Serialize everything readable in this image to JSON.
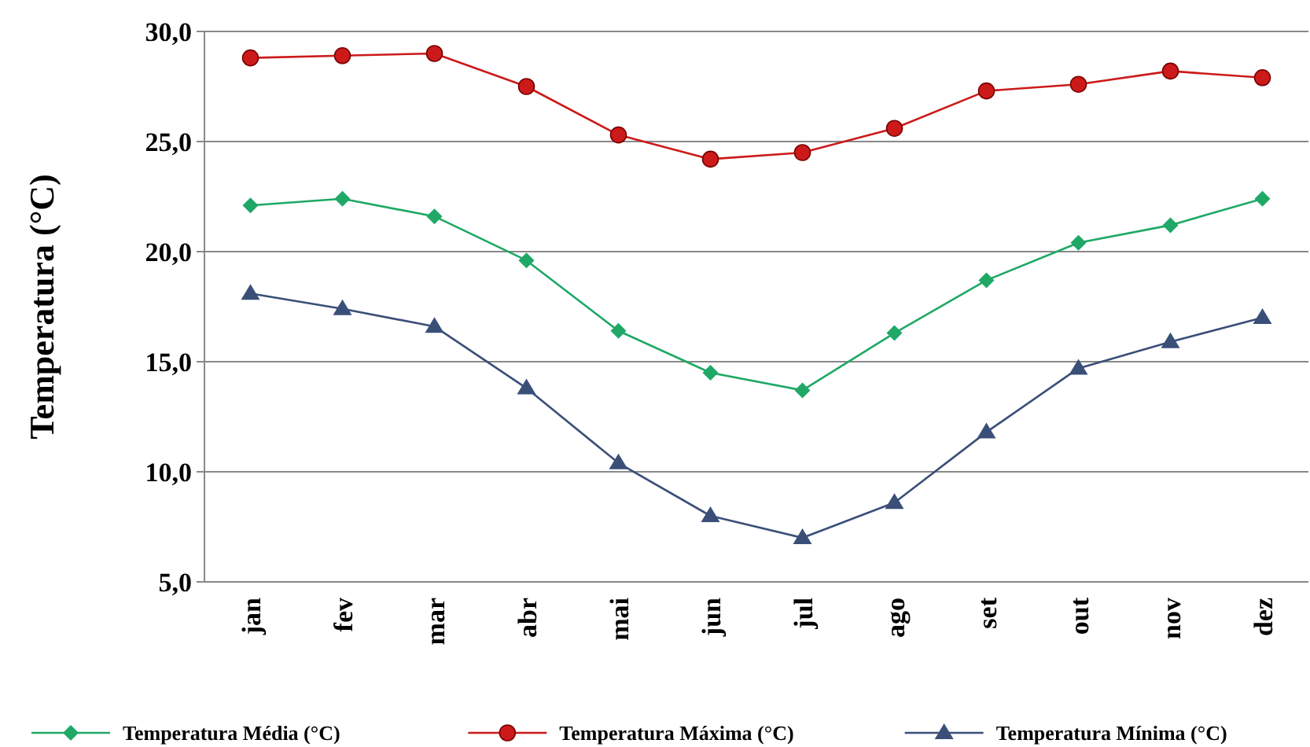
{
  "chart_data": {
    "type": "line",
    "ylabel": "Temperatura (°C)",
    "categories": [
      "jan",
      "fev",
      "mar",
      "abr",
      "mai",
      "jun",
      "jul",
      "ago",
      "set",
      "out",
      "nov",
      "dez"
    ],
    "series": [
      {
        "name": "Temperatura Média (°C)",
        "color": "#1fa866",
        "marker": "diamond",
        "values": [
          22.1,
          22.4,
          21.6,
          19.6,
          16.4,
          14.5,
          13.7,
          16.3,
          18.7,
          20.4,
          21.2,
          22.4
        ]
      },
      {
        "name": "Temperatura Máxima (°C)",
        "color": "#cc1a1a",
        "marker": "circle",
        "values": [
          28.8,
          28.9,
          29.0,
          27.5,
          25.3,
          24.2,
          24.5,
          25.6,
          27.3,
          27.6,
          28.2,
          27.9
        ]
      },
      {
        "name": "Temperatura Mínima (°C)",
        "color": "#3a4f78",
        "marker": "triangle",
        "values": [
          18.1,
          17.4,
          16.6,
          13.8,
          10.4,
          8.0,
          7.0,
          8.6,
          11.8,
          14.7,
          15.9,
          17.0
        ]
      }
    ],
    "ylim": [
      5,
      30
    ],
    "yticks": [
      {
        "value": 5,
        "label": "5,0"
      },
      {
        "value": 10,
        "label": "10,0"
      },
      {
        "value": 15,
        "label": "15,0"
      },
      {
        "value": 20,
        "label": "20,0"
      },
      {
        "value": 25,
        "label": "25,0"
      },
      {
        "value": 30,
        "label": "30,0"
      }
    ],
    "grid": "y",
    "legend": "bottom"
  }
}
